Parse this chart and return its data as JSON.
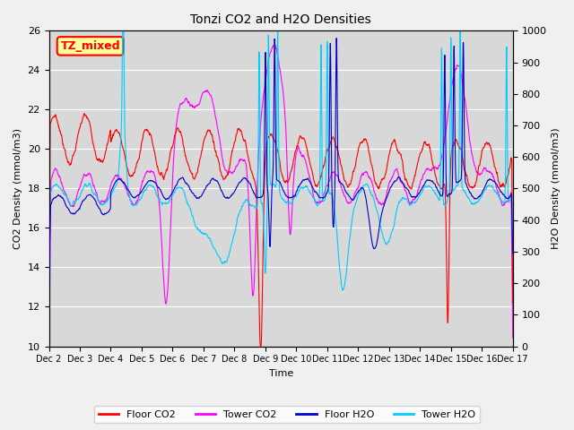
{
  "title": "Tonzi CO2 and H2O Densities",
  "xlabel": "Time",
  "ylabel_left": "CO2 Density (mmol/m3)",
  "ylabel_right": "H2O Density (mmol/m3)",
  "annotation": "TZ_mixed",
  "ylim_left": [
    10,
    26
  ],
  "ylim_right": [
    0,
    1000
  ],
  "yticks_left": [
    10,
    12,
    14,
    16,
    18,
    20,
    22,
    24,
    26
  ],
  "yticks_right": [
    0,
    100,
    200,
    300,
    400,
    500,
    600,
    700,
    800,
    900,
    1000
  ],
  "xtick_labels": [
    "Dec 2",
    "Dec 3",
    "Dec 4",
    "Dec 5",
    "Dec 6",
    "Dec 7",
    "Dec 8",
    "Dec 9",
    "Dec 10",
    "Dec 11",
    "Dec 12",
    "Dec 13",
    "Dec 14",
    "Dec 15",
    "Dec 16",
    "Dec 17"
  ],
  "colors": {
    "floor_co2": "#ff0000",
    "tower_co2": "#ff00ff",
    "floor_h2o": "#0000cc",
    "tower_h2o": "#00ccff"
  },
  "legend_labels": [
    "Floor CO2",
    "Tower CO2",
    "Floor H2O",
    "Tower H2O"
  ],
  "fig_facecolor": "#f0f0f0",
  "plot_bg_color": "#d8d8d8",
  "annotation_bg": "#ffff99",
  "annotation_border": "#ff0000",
  "grid_color": "#ffffff",
  "n_points": 1440,
  "seed": 7
}
